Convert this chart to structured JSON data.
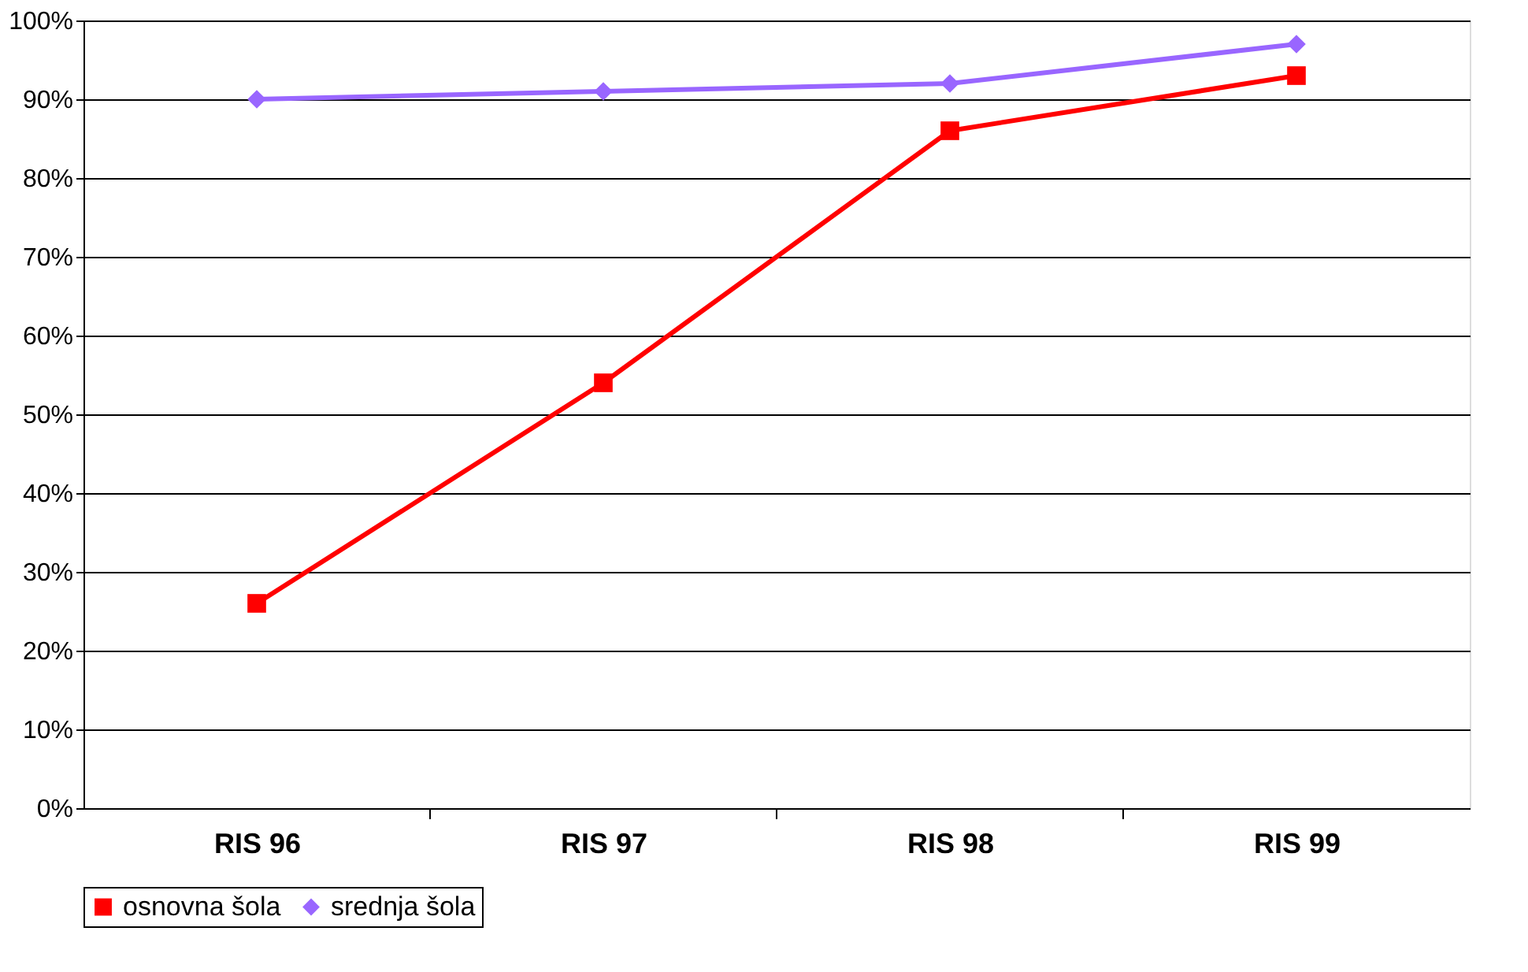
{
  "chart_data": {
    "type": "line",
    "categories": [
      "RIS 96",
      "RIS 97",
      "RIS 98",
      "RIS 99"
    ],
    "series": [
      {
        "name": "osnovna šola",
        "color": "#ff0000",
        "marker": "square",
        "values": [
          26,
          54,
          86,
          93
        ]
      },
      {
        "name": "srednja šola",
        "color": "#9966ff",
        "marker": "diamond",
        "values": [
          90,
          91,
          92,
          97
        ]
      }
    ],
    "ylim": [
      0,
      100
    ],
    "yticks": [
      {
        "value": 0,
        "label": "0%"
      },
      {
        "value": 10,
        "label": "10%"
      },
      {
        "value": 20,
        "label": "20%"
      },
      {
        "value": 30,
        "label": "30%"
      },
      {
        "value": 40,
        "label": "40%"
      },
      {
        "value": 50,
        "label": "50%"
      },
      {
        "value": 60,
        "label": "60%"
      },
      {
        "value": 70,
        "label": "70%"
      },
      {
        "value": 80,
        "label": "80%"
      },
      {
        "value": 90,
        "label": "90%"
      },
      {
        "value": 100,
        "label": "100%"
      }
    ],
    "grid": "y",
    "legend": "bottom",
    "line_style": "solid"
  }
}
